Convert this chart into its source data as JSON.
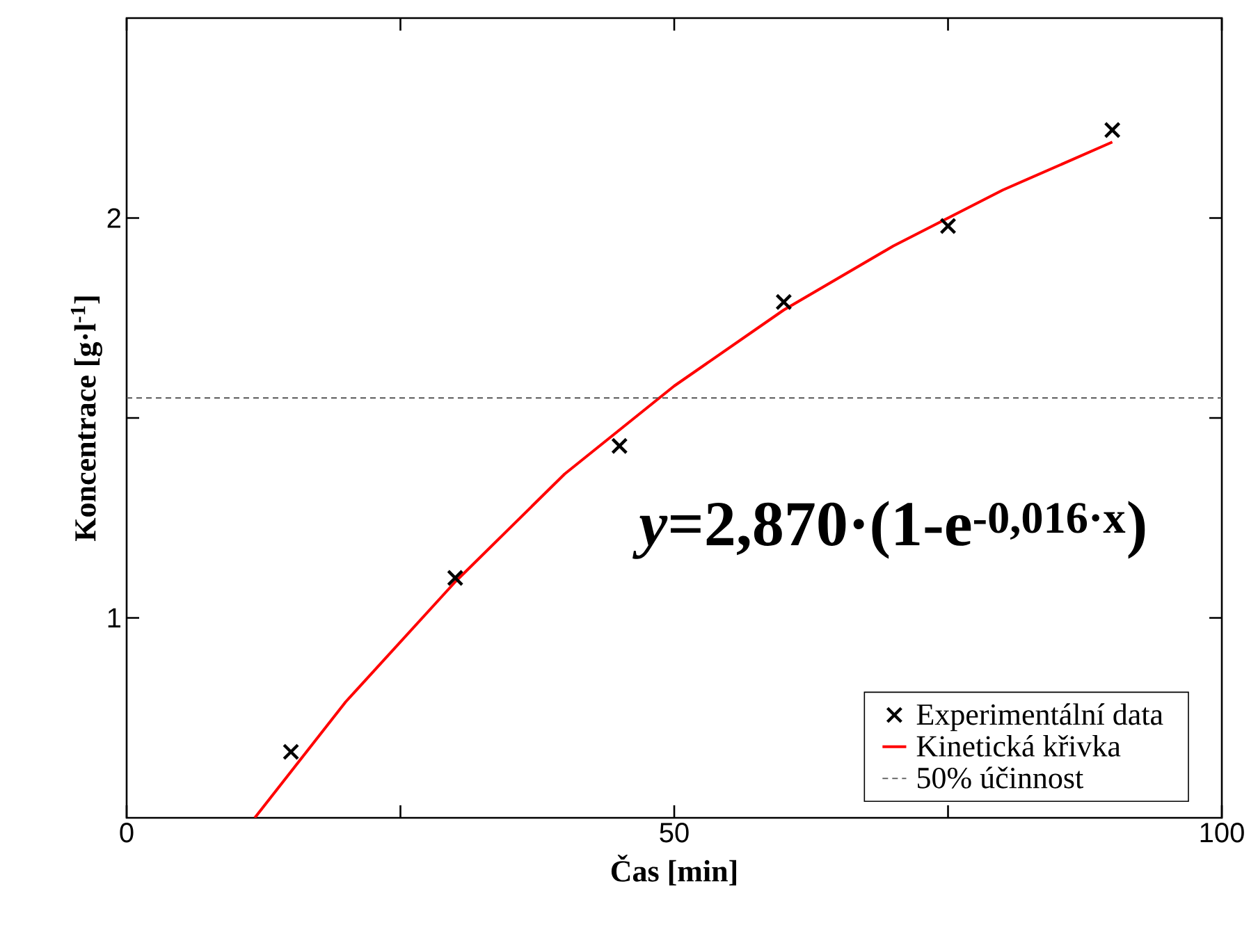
{
  "chart_data": {
    "type": "scatter",
    "xlabel": "Čas [min]",
    "ylabel": "Koncentrace [g·l$^{-1}$]",
    "xlim": [
      0,
      100
    ],
    "ylim": [
      0.5,
      2.5
    ],
    "xticks": [
      0,
      {
        "value": 25,
        "label": null
      },
      50,
      {
        "value": 75,
        "label": null
      },
      100
    ],
    "yticks": [
      1,
      {
        "value": 1.5,
        "label": null
      },
      2
    ],
    "series": [
      {
        "name": "Experimentální data",
        "marker": "cross",
        "color": "#000000",
        "x": [
          15,
          30,
          45,
          60,
          75,
          90
        ],
        "values": [
          0.665,
          1.1,
          1.43,
          1.79,
          1.98,
          2.22
        ]
      },
      {
        "name": "Kinetická křivka",
        "type": "line",
        "marker": "none",
        "line_style": "solid",
        "color": "#ff0000",
        "x": [
          11.7,
          20,
          30,
          40,
          50,
          60,
          70,
          80,
          90
        ],
        "values": [
          0.5,
          0.79,
          1.09,
          1.36,
          1.58,
          1.77,
          1.93,
          2.07,
          2.19
        ]
      }
    ],
    "ref_lines": [
      {
        "axis": "y",
        "value": 1.55,
        "label": "50% účinnost",
        "color": "#555555",
        "line_style": "dashed"
      }
    ],
    "annotations": [
      "*y*=2,870·(1-e$^{-0,016·x}$)"
    ],
    "legend": "bottom right",
    "grid": false
  }
}
